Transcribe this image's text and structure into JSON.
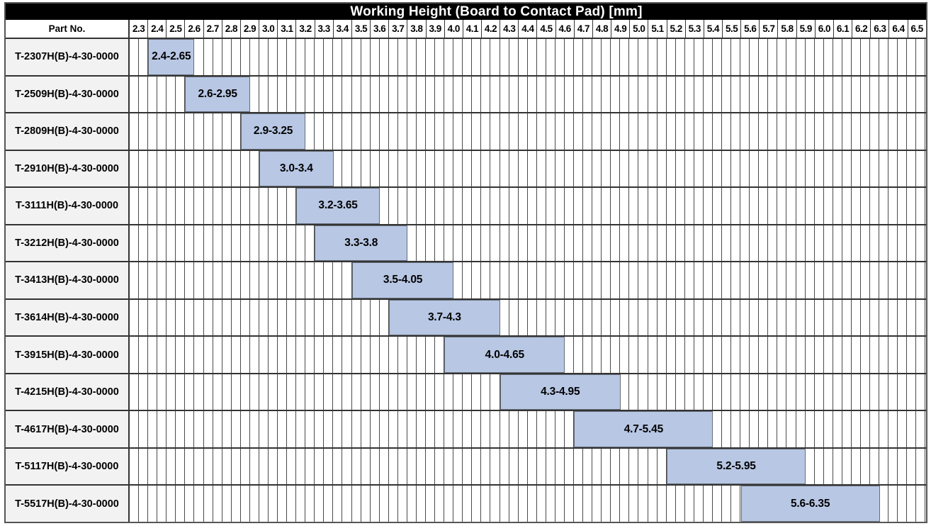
{
  "title": "Working Height (Board to Contact Pad) [mm]",
  "header": {
    "part_no_label": "Part No."
  },
  "colors": {
    "title_bg": "#000000",
    "title_text": "#ffffff",
    "bar_fill": "#b8c7e4",
    "bar_border": "#666d78",
    "row_label_bg": "#f2f2f2",
    "grid_line": "#4a4a4a"
  },
  "chart_data": {
    "type": "bar",
    "orientation": "horizontal-range",
    "title": "Working Height (Board to Contact Pad) [mm]",
    "legend": "none",
    "grid": "on",
    "axis": {
      "min": 2.3,
      "max": 6.6,
      "major_tick_step": 0.1,
      "minor_grid_step": 0.05,
      "tick_labels": [
        "2.3",
        "2.4",
        "2.5",
        "2.6",
        "2.7",
        "2.8",
        "2.9",
        "3.0",
        "3.1",
        "3.2",
        "3.3",
        "3.4",
        "3.5",
        "3.6",
        "3.7",
        "3.8",
        "3.9",
        "4.0",
        "4.1",
        "4.2",
        "4.3",
        "4.4",
        "4.5",
        "4.6",
        "4.7",
        "4.8",
        "4.9",
        "5.0",
        "5.1",
        "5.2",
        "5.3",
        "5.4",
        "5.5",
        "5.6",
        "5.7",
        "5.8",
        "5.9",
        "6.0",
        "6.1",
        "6.2",
        "6.3",
        "6.4",
        "6.5"
      ]
    },
    "rows": [
      {
        "part_no": "T-2307H(B)-4-30-0000",
        "range_label": "2.4-2.65",
        "start": 2.4,
        "end": 2.65
      },
      {
        "part_no": "T-2509H(B)-4-30-0000",
        "range_label": "2.6-2.95",
        "start": 2.6,
        "end": 2.95
      },
      {
        "part_no": "T-2809H(B)-4-30-0000",
        "range_label": "2.9-3.25",
        "start": 2.9,
        "end": 3.25
      },
      {
        "part_no": "T-2910H(B)-4-30-0000",
        "range_label": "3.0-3.4",
        "start": 3.0,
        "end": 3.4
      },
      {
        "part_no": "T-3111H(B)-4-30-0000",
        "range_label": "3.2-3.65",
        "start": 3.2,
        "end": 3.65
      },
      {
        "part_no": "T-3212H(B)-4-30-0000",
        "range_label": "3.3-3.8",
        "start": 3.3,
        "end": 3.8
      },
      {
        "part_no": "T-3413H(B)-4-30-0000",
        "range_label": "3.5-4.05",
        "start": 3.5,
        "end": 4.05
      },
      {
        "part_no": "T-3614H(B)-4-30-0000",
        "range_label": "3.7-4.3",
        "start": 3.7,
        "end": 4.3
      },
      {
        "part_no": "T-3915H(B)-4-30-0000",
        "range_label": "4.0-4.65",
        "start": 4.0,
        "end": 4.65
      },
      {
        "part_no": "T-4215H(B)-4-30-0000",
        "range_label": "4.3-4.95",
        "start": 4.3,
        "end": 4.95
      },
      {
        "part_no": "T-4617H(B)-4-30-0000",
        "range_label": "4.7-5.45",
        "start": 4.7,
        "end": 5.45
      },
      {
        "part_no": "T-5117H(B)-4-30-0000",
        "range_label": "5.2-5.95",
        "start": 5.2,
        "end": 5.95
      },
      {
        "part_no": "T-5517H(B)-4-30-0000",
        "range_label": "5.6-6.35",
        "start": 5.6,
        "end": 6.35
      }
    ]
  }
}
